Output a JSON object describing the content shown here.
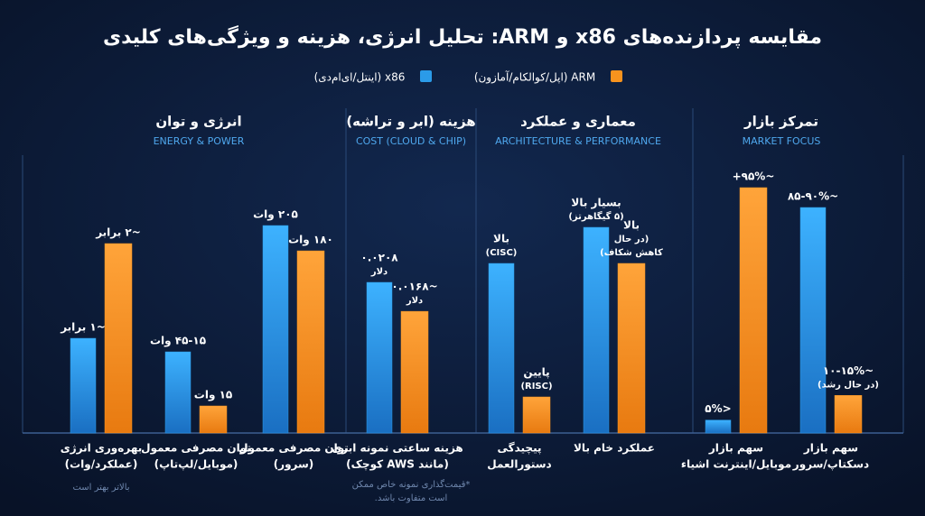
{
  "chart_data": {
    "type": "bar",
    "title": "مقایسه پردازنده‌های x86 و ARM: تحلیل انرژی، هزینه و ویژگی‌های کلیدی",
    "groups": [
      {
        "title": "انرژی و توان",
        "subtitle": "ENERGY & POWER",
        "categories": [
          [
            "بهره‌وری انرژی",
            "(عملکرد/وات)"
          ],
          [
            "توان مصرفی معمول",
            "(موبایل/لپ‌تاپ)"
          ],
          [
            "توان مصرفی معمول",
            "(سرور)"
          ]
        ],
        "note": [
          "بالاتر بهتر است"
        ]
      },
      {
        "title": "هزینه (ابر و تراشه)",
        "subtitle": "COST (CLOUD & CHIP)",
        "categories": [
          [
            "هزینه ساعتی نمونه ابری",
            "(مانند AWS کوچک)"
          ]
        ],
        "note": [
          "*قیمت‌گذاری نمونه خاص ممکن",
          "است متفاوت باشد."
        ]
      },
      {
        "title": "معماری و عملکرد",
        "subtitle": "ARCHITECTURE & PERFORMANCE",
        "categories": [
          [
            "پیچیدگی",
            "دستورالعمل"
          ],
          [
            "عملکرد خام بالا"
          ]
        ]
      },
      {
        "title": "تمرکز بازار",
        "subtitle": "MARKET FOCUS",
        "categories": [
          [
            "سهم بازار",
            "موبایل/اینترنت اشیاء"
          ],
          [
            "سهم بازار",
            "دسکتاپ/سرور"
          ]
        ]
      }
    ],
    "series": [
      {
        "name": "x86 (اینتل/ای‌ام‌دی)",
        "color": "#2b9be8",
        "values": [
          1,
          45,
          205,
          0.0208,
          null,
          null,
          5,
          90
        ],
        "value_labels": [
          [
            "~۱ برابر"
          ],
          [
            "۴۵-۱۵ وات"
          ],
          [
            "۲۰۵ وات"
          ],
          [
            "۰.۰۲۰۸",
            "دلار"
          ],
          [
            "بالا",
            "(CISC)"
          ],
          [
            "بسیار بالا",
            "(۵ گیگاهرتز)"
          ],
          [
            "<۵%"
          ],
          [
            "~۸۵-۹۰%"
          ]
        ]
      },
      {
        "name": "ARM (اپل/کوالکام/آمازون)",
        "color": "#f7931e",
        "values": [
          2,
          15,
          180,
          0.0168,
          null,
          null,
          95,
          15
        ],
        "value_labels": [
          [
            "~۲ برابر"
          ],
          [
            "۱۵ وات"
          ],
          [
            "۱۸۰ وات"
          ],
          [
            "~۰.۰۱۶۸",
            "دلار"
          ],
          [
            "پایین",
            "(RISC)"
          ],
          [
            "بالا",
            "(در حال",
            "کاهش شکاف)"
          ],
          [
            "~۹۵%+"
          ],
          [
            "~۱۰-۱۵%",
            "(در حال رشد)"
          ]
        ]
      }
    ]
  }
}
